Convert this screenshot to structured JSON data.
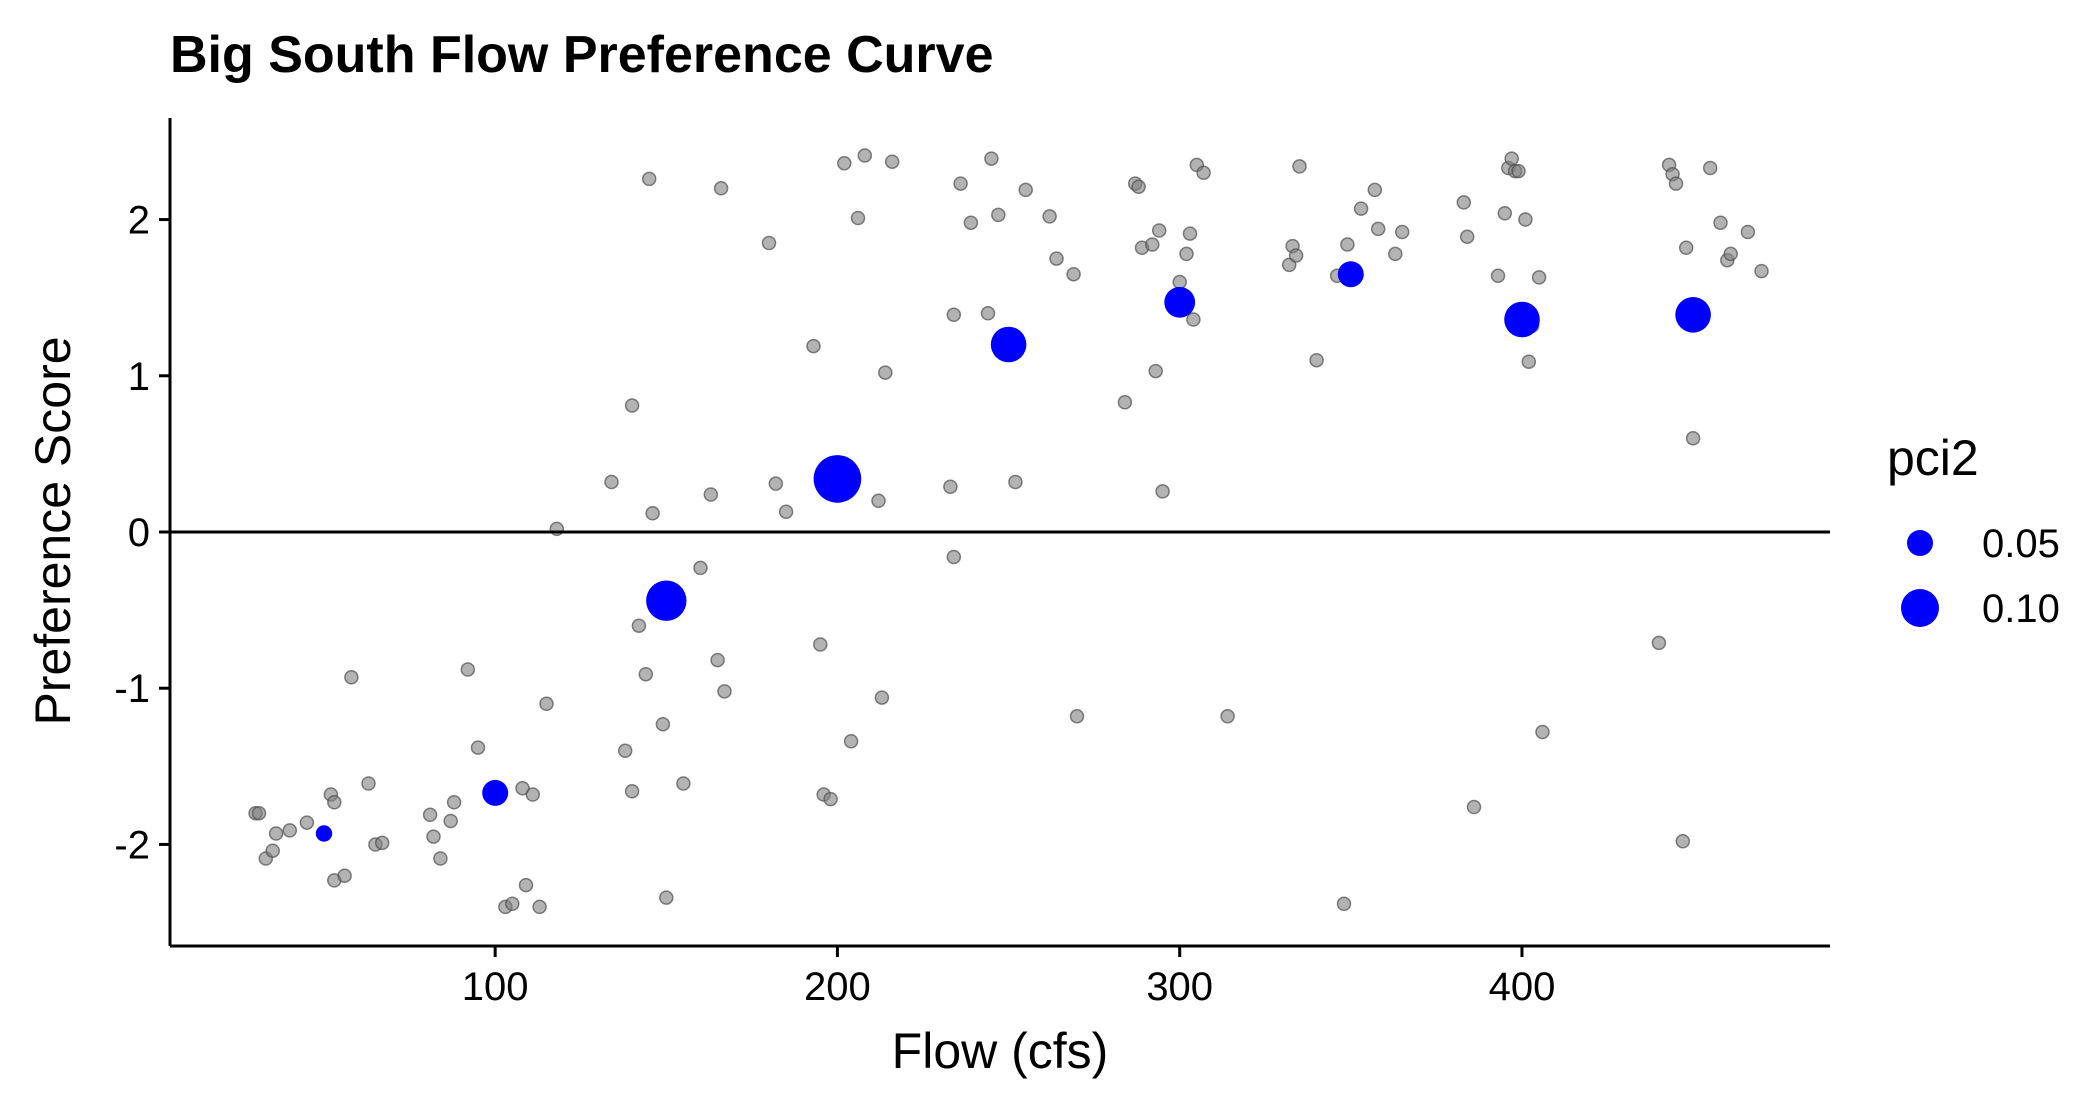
{
  "chart_data": {
    "type": "scatter",
    "title": "Big South Flow Preference Curve",
    "xlabel": "Flow (cfs)",
    "ylabel": "Preference Score",
    "xlim": [
      5,
      490
    ],
    "ylim": [
      -2.65,
      2.65
    ],
    "x_ticks": [
      100,
      200,
      300,
      400
    ],
    "x_tick_labels": [
      "100",
      "200",
      "300",
      "400"
    ],
    "y_ticks": [
      -2,
      -1,
      0,
      1,
      2
    ],
    "y_tick_labels": [
      "-2",
      "-1",
      "0",
      "1",
      "2"
    ],
    "reference_line_y": 0,
    "grid": false,
    "legend": {
      "title": "pci2",
      "position": "right",
      "entries": [
        {
          "label": "0.05",
          "value": 0.05
        },
        {
          "label": "0.10",
          "value": 0.1
        }
      ]
    },
    "colors": {
      "raw_points": "#808080",
      "curve_points": "#0000ff",
      "axis": "#000000"
    },
    "series": [
      {
        "role": "raw observations",
        "color": "#808080",
        "points": [
          [
            30,
            -1.8
          ],
          [
            31,
            -1.8
          ],
          [
            33,
            -2.09
          ],
          [
            35,
            -2.04
          ],
          [
            36,
            -1.93
          ],
          [
            40,
            -1.91
          ],
          [
            45,
            -1.86
          ],
          [
            52,
            -1.68
          ],
          [
            53,
            -1.73
          ],
          [
            53,
            -2.23
          ],
          [
            56,
            -2.2
          ],
          [
            58,
            -0.93
          ],
          [
            63,
            -1.61
          ],
          [
            65,
            -2.0
          ],
          [
            67,
            -1.99
          ],
          [
            81,
            -1.81
          ],
          [
            82,
            -1.95
          ],
          [
            84,
            -2.09
          ],
          [
            87,
            -1.85
          ],
          [
            88,
            -1.73
          ],
          [
            92,
            -0.88
          ],
          [
            95,
            -1.38
          ],
          [
            103,
            -2.4
          ],
          [
            105,
            -2.38
          ],
          [
            108,
            -1.64
          ],
          [
            109,
            -2.26
          ],
          [
            111,
            -1.68
          ],
          [
            113,
            -2.4
          ],
          [
            115,
            -1.1
          ],
          [
            118,
            0.02
          ],
          [
            134,
            0.32
          ],
          [
            138,
            -1.4
          ],
          [
            140,
            -1.66
          ],
          [
            140,
            0.81
          ],
          [
            142,
            -0.6
          ],
          [
            144,
            -0.91
          ],
          [
            145,
            2.26
          ],
          [
            146,
            0.12
          ],
          [
            149,
            -1.23
          ],
          [
            150,
            -2.34
          ],
          [
            155,
            -1.61
          ],
          [
            160,
            -0.23
          ],
          [
            163,
            0.24
          ],
          [
            165,
            -0.82
          ],
          [
            166,
            2.2
          ],
          [
            167,
            -1.02
          ],
          [
            180,
            1.85
          ],
          [
            182,
            0.31
          ],
          [
            185,
            0.13
          ],
          [
            193,
            1.19
          ],
          [
            195,
            -0.72
          ],
          [
            196,
            -1.68
          ],
          [
            198,
            -1.71
          ],
          [
            202,
            2.36
          ],
          [
            204,
            -1.34
          ],
          [
            206,
            2.01
          ],
          [
            208,
            2.41
          ],
          [
            212,
            0.2
          ],
          [
            213,
            -1.06
          ],
          [
            214,
            1.02
          ],
          [
            216,
            2.37
          ],
          [
            233,
            0.29
          ],
          [
            234,
            1.39
          ],
          [
            234,
            -0.16
          ],
          [
            236,
            2.23
          ],
          [
            239,
            1.98
          ],
          [
            244,
            1.4
          ],
          [
            245,
            2.39
          ],
          [
            247,
            2.03
          ],
          [
            252,
            0.32
          ],
          [
            255,
            2.19
          ],
          [
            262,
            2.02
          ],
          [
            264,
            1.75
          ],
          [
            269,
            1.65
          ],
          [
            270,
            -1.18
          ],
          [
            284,
            0.83
          ],
          [
            287,
            2.23
          ],
          [
            288,
            2.21
          ],
          [
            289,
            1.82
          ],
          [
            292,
            1.84
          ],
          [
            293,
            1.03
          ],
          [
            294,
            1.93
          ],
          [
            295,
            0.26
          ],
          [
            300,
            1.6
          ],
          [
            302,
            1.78
          ],
          [
            303,
            1.91
          ],
          [
            304,
            1.36
          ],
          [
            305,
            2.35
          ],
          [
            307,
            2.3
          ],
          [
            314,
            -1.18
          ],
          [
            332,
            1.71
          ],
          [
            333,
            1.83
          ],
          [
            334,
            1.77
          ],
          [
            335,
            2.34
          ],
          [
            340,
            1.1
          ],
          [
            346,
            1.64
          ],
          [
            348,
            -2.38
          ],
          [
            349,
            1.84
          ],
          [
            353,
            2.07
          ],
          [
            357,
            2.19
          ],
          [
            358,
            1.94
          ],
          [
            363,
            1.78
          ],
          [
            365,
            1.92
          ],
          [
            383,
            2.11
          ],
          [
            384,
            1.89
          ],
          [
            386,
            -1.76
          ],
          [
            393,
            1.64
          ],
          [
            395,
            2.04
          ],
          [
            396,
            2.33
          ],
          [
            397,
            2.39
          ],
          [
            398,
            2.31
          ],
          [
            399,
            2.31
          ],
          [
            401,
            2.0
          ],
          [
            402,
            1.09
          ],
          [
            403,
            1.32
          ],
          [
            405,
            1.63
          ],
          [
            406,
            -1.28
          ],
          [
            440,
            -0.71
          ],
          [
            443,
            2.35
          ],
          [
            444,
            2.29
          ],
          [
            445,
            2.23
          ],
          [
            447,
            -1.98
          ],
          [
            448,
            1.82
          ],
          [
            450,
            0.6
          ],
          [
            455,
            2.33
          ],
          [
            458,
            1.98
          ],
          [
            460,
            1.74
          ],
          [
            461,
            1.78
          ],
          [
            466,
            1.92
          ],
          [
            470,
            1.67
          ]
        ]
      },
      {
        "role": "preference curve",
        "color": "#0000ff",
        "points": [
          {
            "x": 50,
            "y": -1.93,
            "pci2": 0.01
          },
          {
            "x": 100,
            "y": -1.67,
            "pci2": 0.05
          },
          {
            "x": 150,
            "y": -0.44,
            "pci2": 0.11
          },
          {
            "x": 200,
            "y": 0.34,
            "pci2": 0.14
          },
          {
            "x": 250,
            "y": 1.2,
            "pci2": 0.09
          },
          {
            "x": 300,
            "y": 1.47,
            "pci2": 0.07
          },
          {
            "x": 350,
            "y": 1.65,
            "pci2": 0.05
          },
          {
            "x": 400,
            "y": 1.36,
            "pci2": 0.09
          },
          {
            "x": 450,
            "y": 1.39,
            "pci2": 0.09
          }
        ]
      }
    ]
  }
}
